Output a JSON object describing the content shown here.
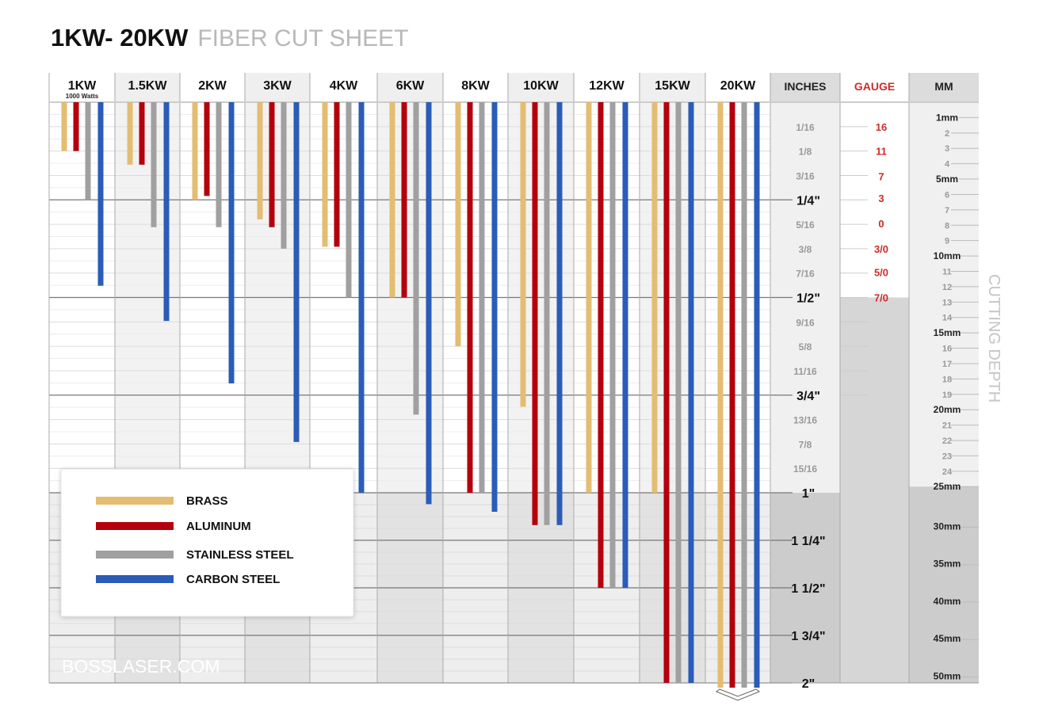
{
  "header": {
    "title": "1KW- 20KW",
    "subtitle": "FIBER CUT SHEET"
  },
  "watermark": "BOSSLASER.COM",
  "side_label": "CUTTING DEPTH",
  "chart_data": {
    "type": "bar",
    "orientation": "vertical-downward",
    "ylabel": "CUTTING DEPTH",
    "yunit": "inches",
    "ylim": [
      0,
      2
    ],
    "scale_note": "piecewise: 0–1 in expanded, 1–2 in compressed",
    "grid": true,
    "legend_position": "bottom-left",
    "categories": [
      "1KW",
      "1.5KW",
      "2KW",
      "3KW",
      "4KW",
      "6KW",
      "8KW",
      "10KW",
      "12KW",
      "15KW",
      "20KW"
    ],
    "category_sublabels": {
      "1KW": "1000 Watts"
    },
    "series": [
      {
        "name": "BRASS",
        "color": "#e3bd72",
        "values": [
          0.125,
          0.16,
          0.25,
          0.3,
          0.37,
          0.5,
          0.625,
          0.78,
          1.0,
          1.0,
          2.0
        ]
      },
      {
        "name": "ALUMINUM",
        "color": "#b4000c",
        "values": [
          0.125,
          0.16,
          0.24,
          0.32,
          0.37,
          0.5,
          1.0,
          1.17,
          1.5,
          2.0,
          2.0
        ]
      },
      {
        "name": "STAINLESS STEEL",
        "color": "#a0a0a0",
        "values": [
          0.25,
          0.32,
          0.32,
          0.375,
          0.5,
          0.8,
          1.0,
          1.17,
          1.5,
          2.0,
          2.0
        ]
      },
      {
        "name": "CARBON STEEL",
        "color": "#2a5cb8",
        "values": [
          0.47,
          0.56,
          0.72,
          0.87,
          1.0,
          1.06,
          1.1,
          1.17,
          1.5,
          2.0,
          2.0
        ]
      }
    ],
    "overflow_indicator": "20KW",
    "axes": {
      "inches": {
        "header": "INCHES",
        "minor_ticks": [
          {
            "label": "1/16",
            "v": 0.0625
          },
          {
            "label": "1/8",
            "v": 0.125
          },
          {
            "label": "3/16",
            "v": 0.1875
          },
          {
            "label": "5/16",
            "v": 0.3125
          },
          {
            "label": "3/8",
            "v": 0.375
          },
          {
            "label": "7/16",
            "v": 0.4375
          },
          {
            "label": "9/16",
            "v": 0.5625
          },
          {
            "label": "5/8",
            "v": 0.625
          },
          {
            "label": "11/16",
            "v": 0.6875
          },
          {
            "label": "13/16",
            "v": 0.8125
          },
          {
            "label": "7/8",
            "v": 0.875
          },
          {
            "label": "15/16",
            "v": 0.9375
          }
        ],
        "major_ticks": [
          {
            "label": "1/4\"",
            "v": 0.25
          },
          {
            "label": "1/2\"",
            "v": 0.5
          },
          {
            "label": "3/4\"",
            "v": 0.75
          },
          {
            "label": "1\"",
            "v": 1
          },
          {
            "label": "1 1/4\"",
            "v": 1.25
          },
          {
            "label": "1 1/2\"",
            "v": 1.5
          },
          {
            "label": "1 3/4\"",
            "v": 1.75
          },
          {
            "label": "2\"",
            "v": 2
          }
        ]
      },
      "gauge": {
        "header": "GAUGE",
        "color": "#cc2b2b",
        "ticks": [
          {
            "label": "16",
            "v": 0.0625
          },
          {
            "label": "11",
            "v": 0.125
          },
          {
            "label": "7",
            "v": 0.19
          },
          {
            "label": "3",
            "v": 0.245
          },
          {
            "label": "0",
            "v": 0.31
          },
          {
            "label": "3/0",
            "v": 0.375
          },
          {
            "label": "5/0",
            "v": 0.435
          },
          {
            "label": "7/0",
            "v": 0.5
          }
        ]
      },
      "mm": {
        "header": "MM",
        "ticks": [
          {
            "label": "1mm",
            "mm": 1,
            "major": true
          },
          {
            "label": "2",
            "mm": 2
          },
          {
            "label": "3",
            "mm": 3
          },
          {
            "label": "4",
            "mm": 4
          },
          {
            "label": "5mm",
            "mm": 5,
            "major": true
          },
          {
            "label": "6",
            "mm": 6
          },
          {
            "label": "7",
            "mm": 7
          },
          {
            "label": "8",
            "mm": 8
          },
          {
            "label": "9",
            "mm": 9
          },
          {
            "label": "10mm",
            "mm": 10,
            "major": true
          },
          {
            "label": "11",
            "mm": 11
          },
          {
            "label": "12",
            "mm": 12
          },
          {
            "label": "13",
            "mm": 13
          },
          {
            "label": "14",
            "mm": 14
          },
          {
            "label": "15mm",
            "mm": 15,
            "major": true
          },
          {
            "label": "16",
            "mm": 16
          },
          {
            "label": "17",
            "mm": 17
          },
          {
            "label": "18",
            "mm": 18
          },
          {
            "label": "19",
            "mm": 19
          },
          {
            "label": "20mm",
            "mm": 20,
            "major": true
          },
          {
            "label": "21",
            "mm": 21
          },
          {
            "label": "22",
            "mm": 22
          },
          {
            "label": "23",
            "mm": 23
          },
          {
            "label": "24",
            "mm": 24
          },
          {
            "label": "25mm",
            "mm": 25,
            "major": true
          },
          {
            "label": "30mm",
            "mm": 30,
            "major": true
          },
          {
            "label": "35mm",
            "mm": 35,
            "major": true
          },
          {
            "label": "40mm",
            "mm": 40,
            "major": true
          },
          {
            "label": "45mm",
            "mm": 45,
            "major": true
          },
          {
            "label": "50mm",
            "mm": 50,
            "major": true
          }
        ]
      }
    }
  }
}
